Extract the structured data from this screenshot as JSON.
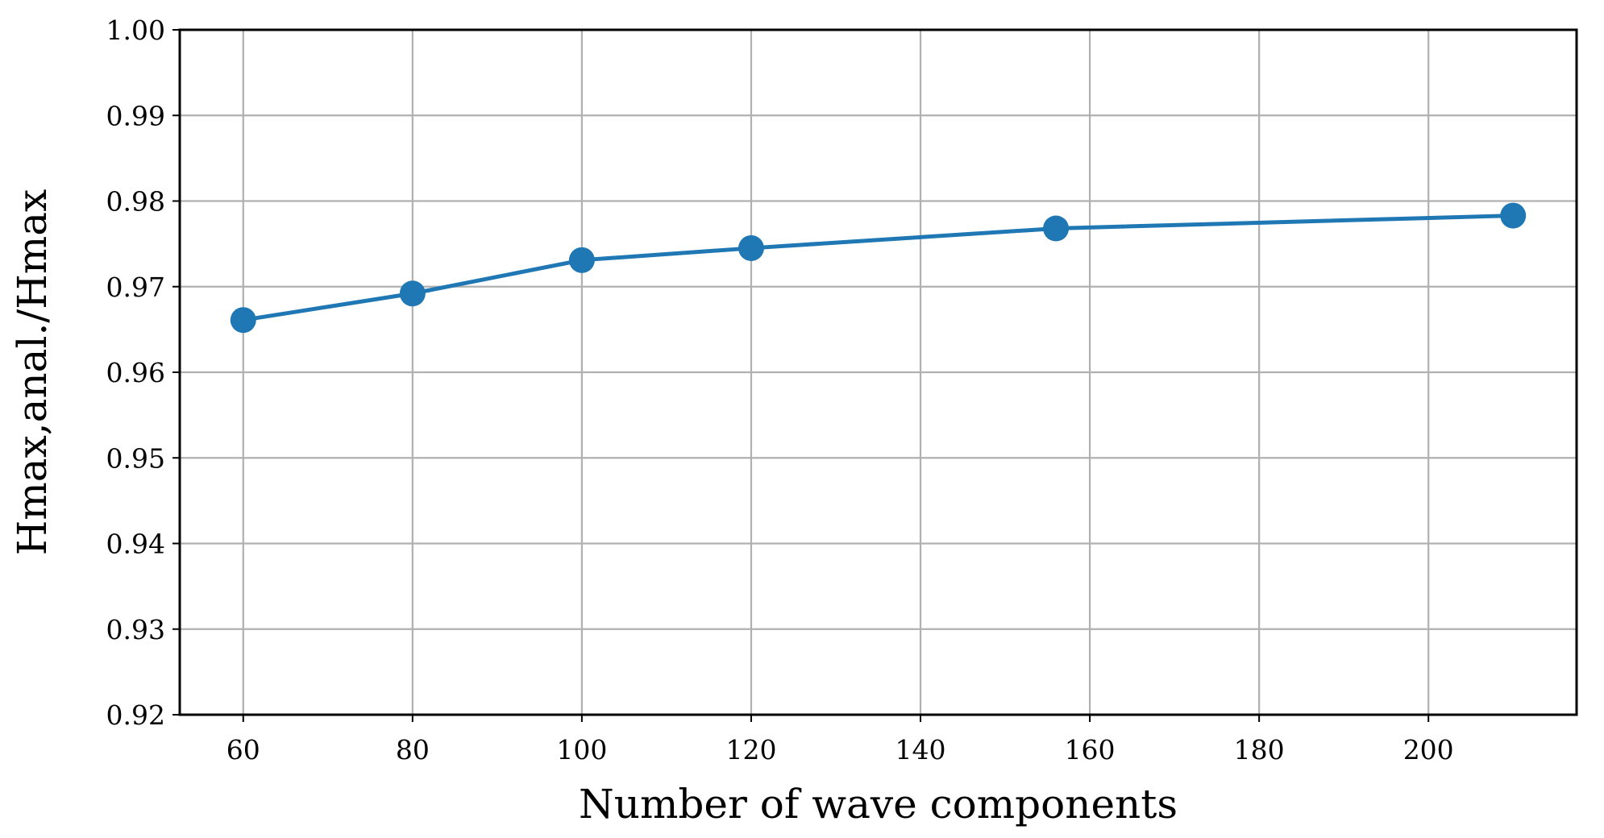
{
  "chart_data": {
    "type": "line",
    "xlabel": "Number of wave components",
    "ylabel": "Hmax,anal./Hmax",
    "xlim": [
      52.5,
      217.5
    ],
    "ylim": [
      0.92,
      1.0
    ],
    "xticks": [
      60,
      80,
      100,
      120,
      140,
      160,
      180,
      200
    ],
    "xtick_labels": [
      "60",
      "80",
      "100",
      "120",
      "140",
      "160",
      "180",
      "200"
    ],
    "yticks": [
      0.92,
      0.93,
      0.94,
      0.95,
      0.96,
      0.97,
      0.98,
      0.99,
      1.0
    ],
    "ytick_labels": [
      "0.92",
      "0.93",
      "0.94",
      "0.95",
      "0.96",
      "0.97",
      "0.98",
      "0.99",
      "1.00"
    ],
    "grid": true,
    "legend": false,
    "series": [
      {
        "color": "#1f77b4",
        "marker": "circle",
        "x": [
          60,
          80,
          100,
          120,
          156,
          210
        ],
        "y": [
          0.9661,
          0.9692,
          0.9731,
          0.9745,
          0.9768,
          0.9783
        ]
      }
    ]
  }
}
